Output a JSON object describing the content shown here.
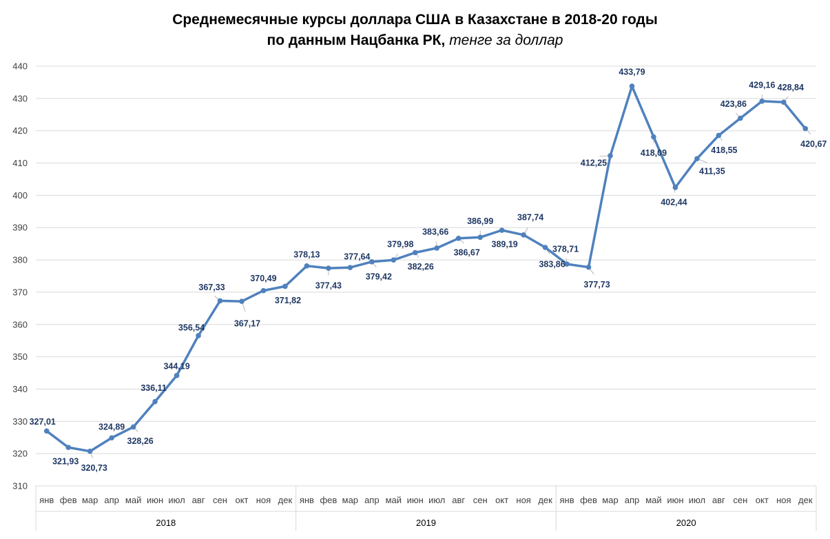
{
  "chart_data": {
    "type": "line",
    "title_line1": "Среднемесячные курсы доллара США в Казахстане в 2018-20 годы",
    "title_line2_bold": "по данным Нацбанка РК,",
    "title_line2_italic": "тенге за доллар",
    "ylim": [
      310,
      440
    ],
    "y_ticks": [
      "310",
      "320",
      "330",
      "340",
      "350",
      "360",
      "370",
      "380",
      "390",
      "400",
      "410",
      "420",
      "430",
      "440"
    ],
    "months": [
      "янв",
      "фев",
      "мар",
      "апр",
      "май",
      "июн",
      "июл",
      "авг",
      "сен",
      "окт",
      "ноя",
      "дек"
    ],
    "years": [
      "2018",
      "2019",
      "2020"
    ],
    "values": [
      327.01,
      321.93,
      320.73,
      324.89,
      328.26,
      336.11,
      344.19,
      356.54,
      367.33,
      367.17,
      370.49,
      371.82,
      378.13,
      377.43,
      377.64,
      379.42,
      379.98,
      382.26,
      383.66,
      386.67,
      386.99,
      389.19,
      387.74,
      383.86,
      378.71,
      377.73,
      412.25,
      433.79,
      418.09,
      402.44,
      411.35,
      418.55,
      423.86,
      429.16,
      428.84,
      420.67
    ],
    "labels": [
      "327,01",
      "321,93",
      "320,73",
      "324,89",
      "328,26",
      "336,11",
      "344,19",
      "356,54",
      "367,33",
      "367,17",
      "370,49",
      "371,82",
      "378,13",
      "377,43",
      "377,64",
      "379,42",
      "379,98",
      "382,26",
      "383,66",
      "386,67",
      "386,99",
      "389,19",
      "387,74",
      "383,86",
      "378,71",
      "377,73",
      "412,25",
      "433,79",
      "418,09",
      "402,44",
      "411,35",
      "418,55",
      "423,86",
      "429,16",
      "428,84",
      "420,67"
    ],
    "line_color": "#4f81bd",
    "label_color": "#1f3864",
    "grid": true,
    "legend": "none"
  }
}
